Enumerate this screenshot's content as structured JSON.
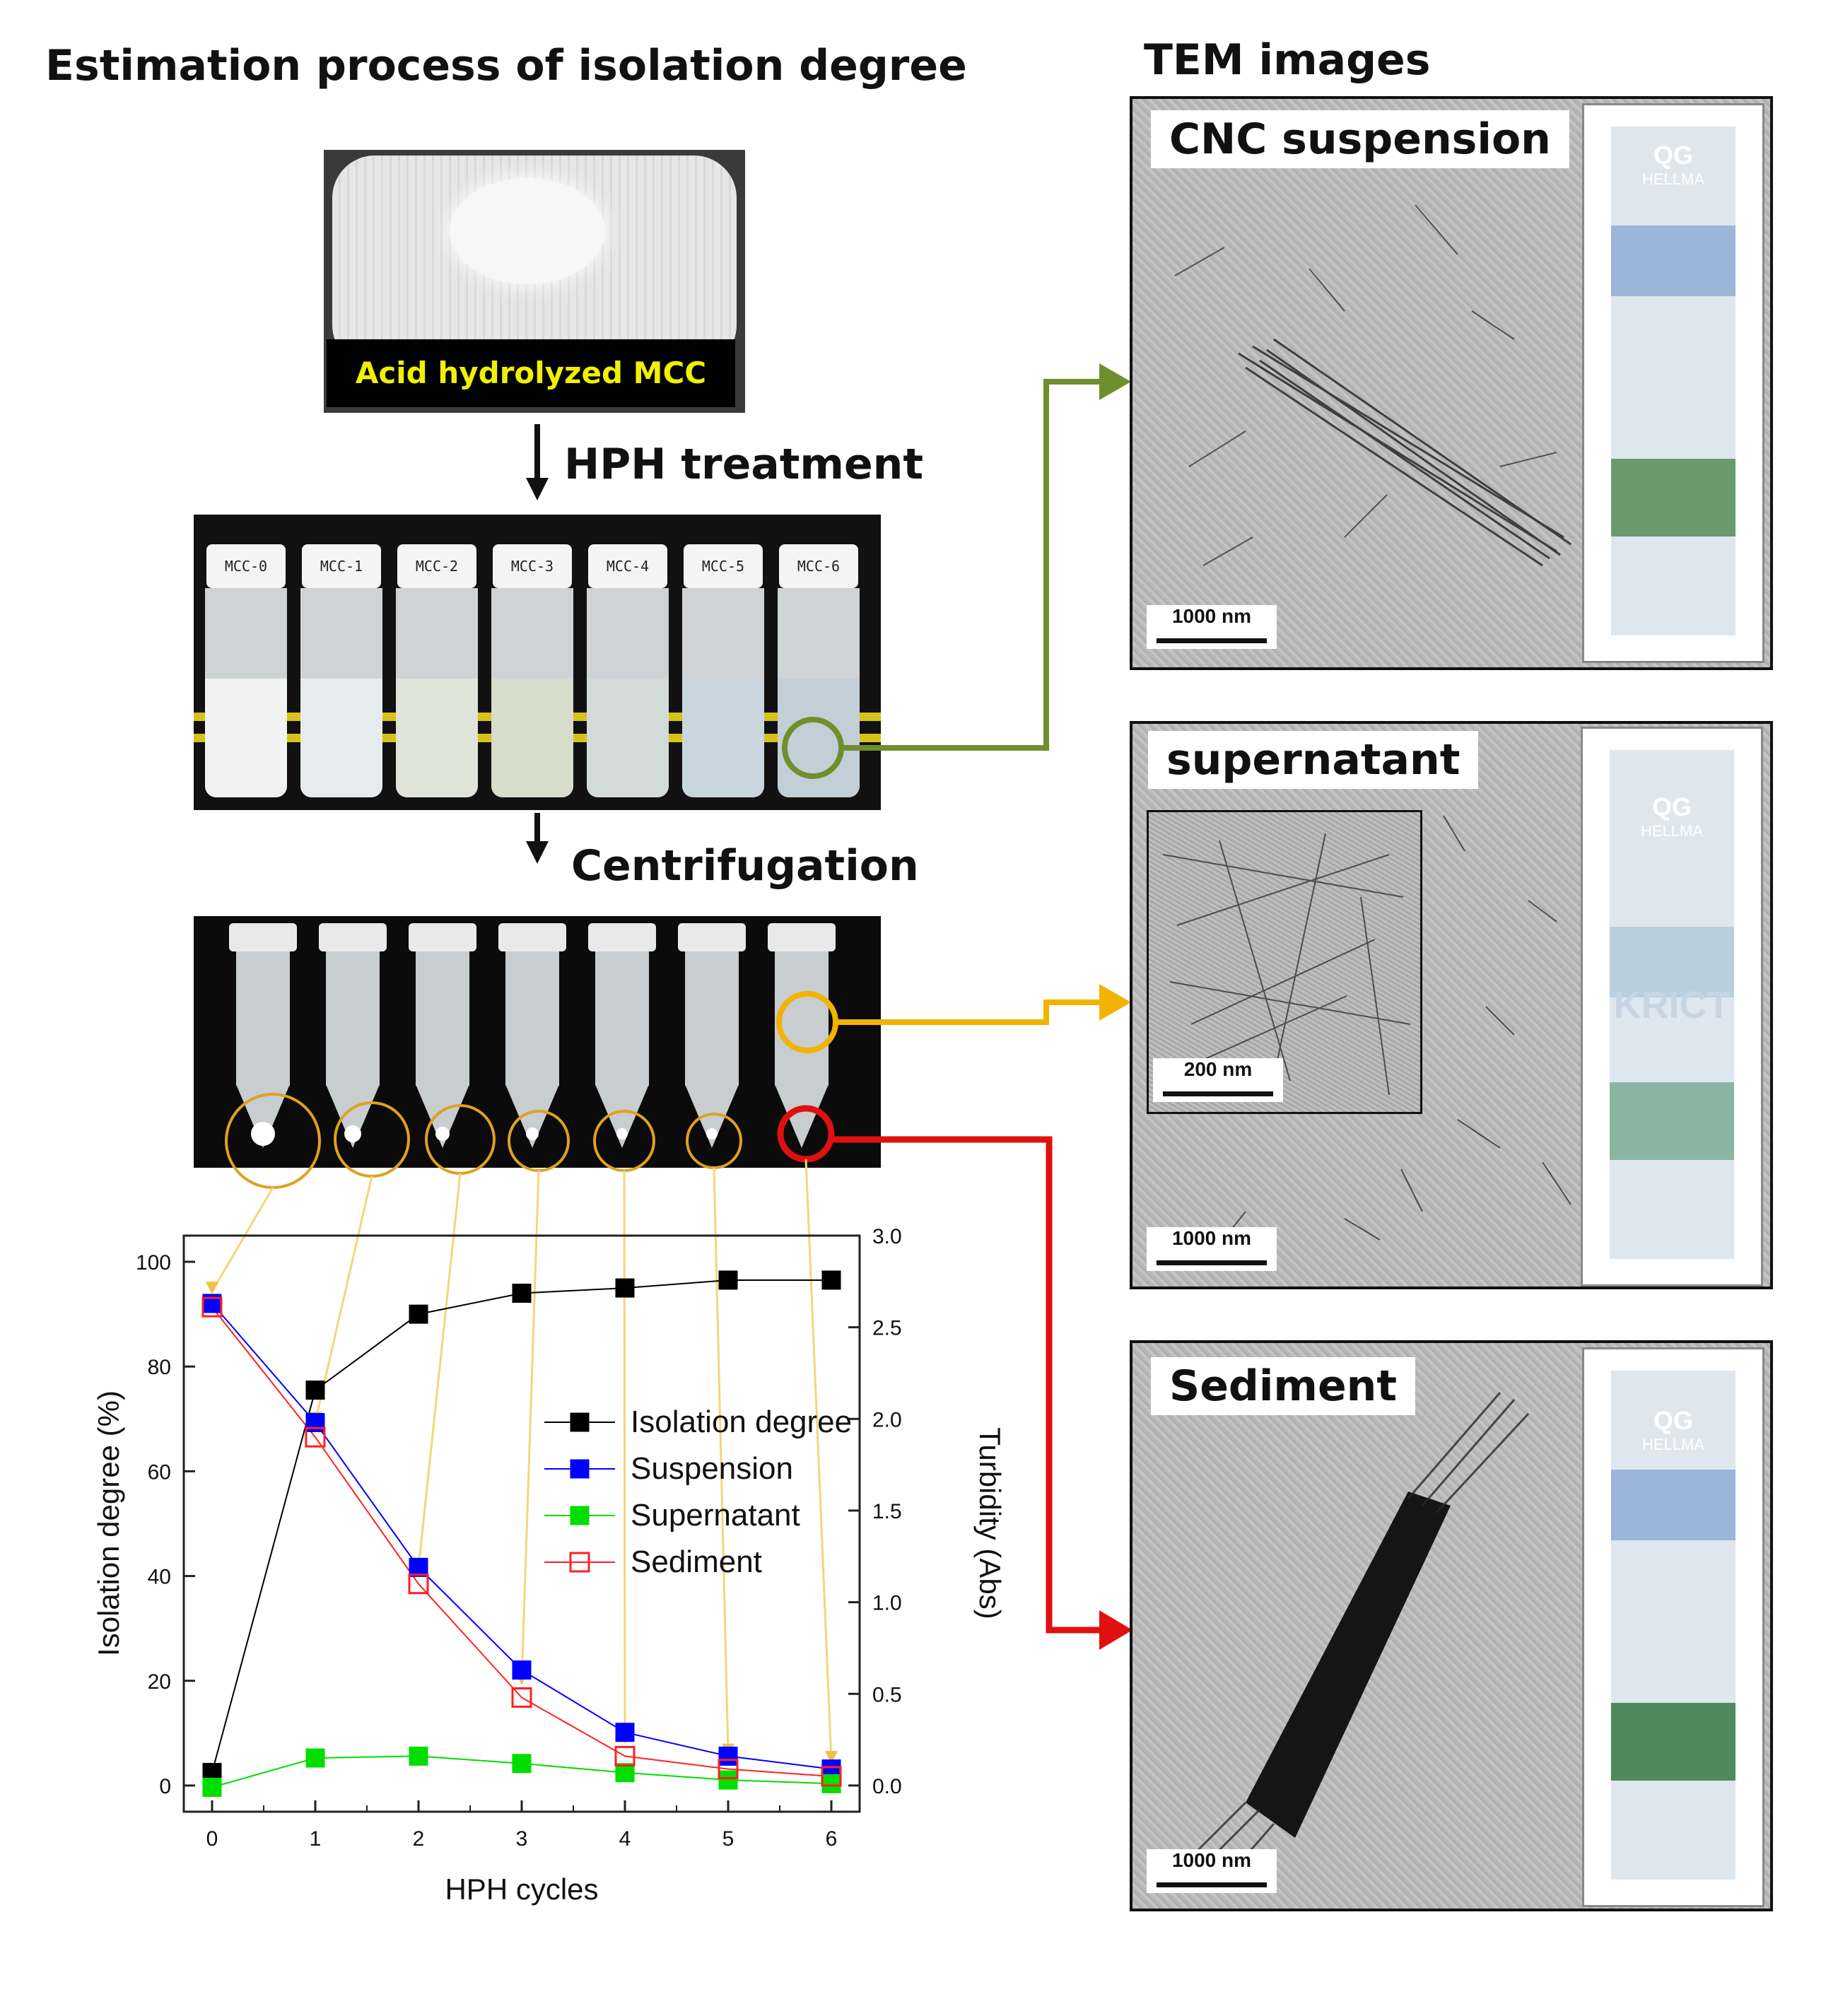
{
  "left_title": "Estimation process of isolation degree",
  "right_title": "TEM images",
  "mcc_label": "Acid hydrolyzed MCC",
  "step1": "HPH treatment",
  "step2": "Centrifugation",
  "vial_labels": [
    "MCC-0",
    "MCC-1",
    "MCC-2",
    "MCC-3",
    "MCC-4",
    "MCC-5",
    "MCC-6"
  ],
  "tem": {
    "panel1": {
      "title": "CNC suspension",
      "scale": "1000 nm"
    },
    "panel2": {
      "title": "supernatant",
      "scale": "1000 nm",
      "inset_scale": "200 nm"
    },
    "panel3": {
      "title": "Sediment",
      "scale": "1000 nm"
    }
  },
  "cuvette_brand": "QG",
  "cuvette_maker": "HELLMA",
  "cuvette_logo": "KRICT",
  "colors": {
    "green_arrow": "#6f8f2e",
    "yellow_arrow": "#f2b300",
    "red_arrow": "#e01010",
    "orange_circle": "#e0a020"
  },
  "chart_data": {
    "type": "line",
    "x": [
      0,
      1,
      2,
      3,
      4,
      5,
      6
    ],
    "xlabel": "HPH cycles",
    "ylabel_left": "Isolation degree (%)",
    "ylabel_right": "Turbidity (Abs)",
    "xticks": [
      "0",
      "1",
      "2",
      "3",
      "4",
      "5",
      "6"
    ],
    "yticks_left": [
      "0",
      "20",
      "40",
      "60",
      "80",
      "100"
    ],
    "yticks_right": [
      "0.0",
      "0.5",
      "1.0",
      "1.5",
      "2.0",
      "2.5",
      "3.0"
    ],
    "ylim_left": [
      -5,
      105
    ],
    "ylim_right": [
      -0.143,
      3.0
    ],
    "legend_position": "center-right",
    "series": [
      {
        "name": "Isolation degree",
        "axis": "left",
        "color": "#000000",
        "marker": "filled-square",
        "values": [
          2.5,
          75.5,
          90,
          94,
          95,
          96.5,
          96.5
        ]
      },
      {
        "name": "Suspension",
        "axis": "right",
        "color": "#0000ff",
        "marker": "filled-square",
        "values": [
          2.63,
          1.98,
          1.19,
          0.63,
          0.29,
          0.16,
          0.09
        ]
      },
      {
        "name": "Supernatant",
        "axis": "right",
        "color": "#00dd00",
        "marker": "filled-square",
        "values": [
          -0.01,
          0.15,
          0.16,
          0.12,
          0.07,
          0.03,
          0.01
        ]
      },
      {
        "name": "Sediment",
        "axis": "right",
        "color": "#ff2020",
        "marker": "open-square",
        "values": [
          2.61,
          1.9,
          1.1,
          0.48,
          0.16,
          0.09,
          0.05
        ]
      }
    ]
  }
}
